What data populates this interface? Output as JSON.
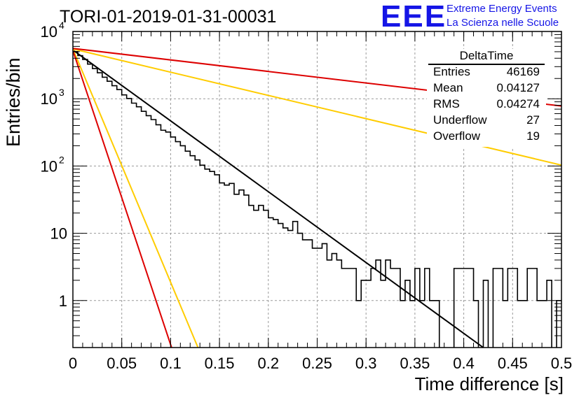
{
  "chart_data": {
    "type": "histogram",
    "title": "TORI-01-2019-01-31-00031",
    "xlabel": "Time difference [s]",
    "ylabel": "Entries/bin",
    "xlim": [
      0,
      0.5
    ],
    "ylim": [
      0.2,
      10000
    ],
    "yscale": "log",
    "grid": true,
    "x_ticks": [
      "0",
      "0.05",
      "0.1",
      "0.15",
      "0.2",
      "0.25",
      "0.3",
      "0.35",
      "0.4",
      "0.45",
      "0.5"
    ],
    "x_tick_values": [
      0,
      0.05,
      0.1,
      0.15,
      0.2,
      0.25,
      0.3,
      0.35,
      0.4,
      0.45,
      0.5
    ],
    "y_ticks": [
      {
        "value": 1,
        "label": "1",
        "exp": ""
      },
      {
        "value": 10,
        "label": "10",
        "exp": ""
      },
      {
        "value": 100,
        "label": "10",
        "exp": "2"
      },
      {
        "value": 1000,
        "label": "10",
        "exp": "3"
      },
      {
        "value": 10000,
        "label": "10",
        "exp": "4"
      }
    ],
    "histogram": {
      "bin_width": 0.005,
      "counts": [
        5020,
        4380,
        3830,
        3270,
        2810,
        2430,
        2090,
        1820,
        1560,
        1370,
        1140,
        1010,
        860,
        760,
        650,
        560,
        490,
        410,
        340,
        320,
        270,
        230,
        200,
        166,
        142,
        123,
        103,
        90,
        83,
        74,
        56,
        52,
        55,
        38,
        44,
        37,
        26,
        22,
        26,
        22,
        17,
        16,
        14,
        12,
        11,
        15,
        10,
        8,
        8,
        6,
        6,
        7,
        4,
        5,
        4,
        3,
        3,
        3,
        1,
        2,
        2,
        3,
        4,
        2,
        4,
        3,
        3,
        1,
        2,
        1,
        3,
        1,
        3,
        1,
        1,
        0.1,
        0.1,
        0.1,
        3,
        3,
        3,
        3,
        1,
        0.1,
        2,
        0.1,
        3,
        3,
        1,
        3,
        3,
        1,
        1,
        3,
        3,
        1,
        1,
        2,
        0.1,
        1
      ]
    },
    "fits": [
      {
        "color": "#000000",
        "y0": 5300,
        "y_at_end": 0.2,
        "x_end": 0.42
      },
      {
        "color": "#ffcc00",
        "y0": 5500,
        "y_at_end": 0.2,
        "x_end": 0.128
      },
      {
        "color": "#dd0000",
        "y0": 5200,
        "y_at_end": 0.2,
        "x_end": 0.101
      },
      {
        "color": "#ffcc00",
        "y0": 5500,
        "y_at_end": 103,
        "x_end": 0.5
      },
      {
        "color": "#dd0000",
        "y0": 5600,
        "y_at_end": 780,
        "x_end": 0.5
      }
    ],
    "colors": {
      "red": "#dd0000",
      "orange": "#ffcc00",
      "black": "#000000"
    }
  },
  "logo": {
    "text": "EEE",
    "line1": "Extreme Energy Events",
    "line2": "La Scienza nelle Scuole"
  },
  "stats_box": {
    "title": "DeltaTime",
    "rows": [
      {
        "label": "Entries",
        "value": "46169"
      },
      {
        "label": "Mean",
        "value": "0.04127"
      },
      {
        "label": "RMS",
        "value": "0.04274"
      },
      {
        "label": "Underflow",
        "value": "27"
      },
      {
        "label": "Overflow",
        "value": "19"
      }
    ]
  }
}
